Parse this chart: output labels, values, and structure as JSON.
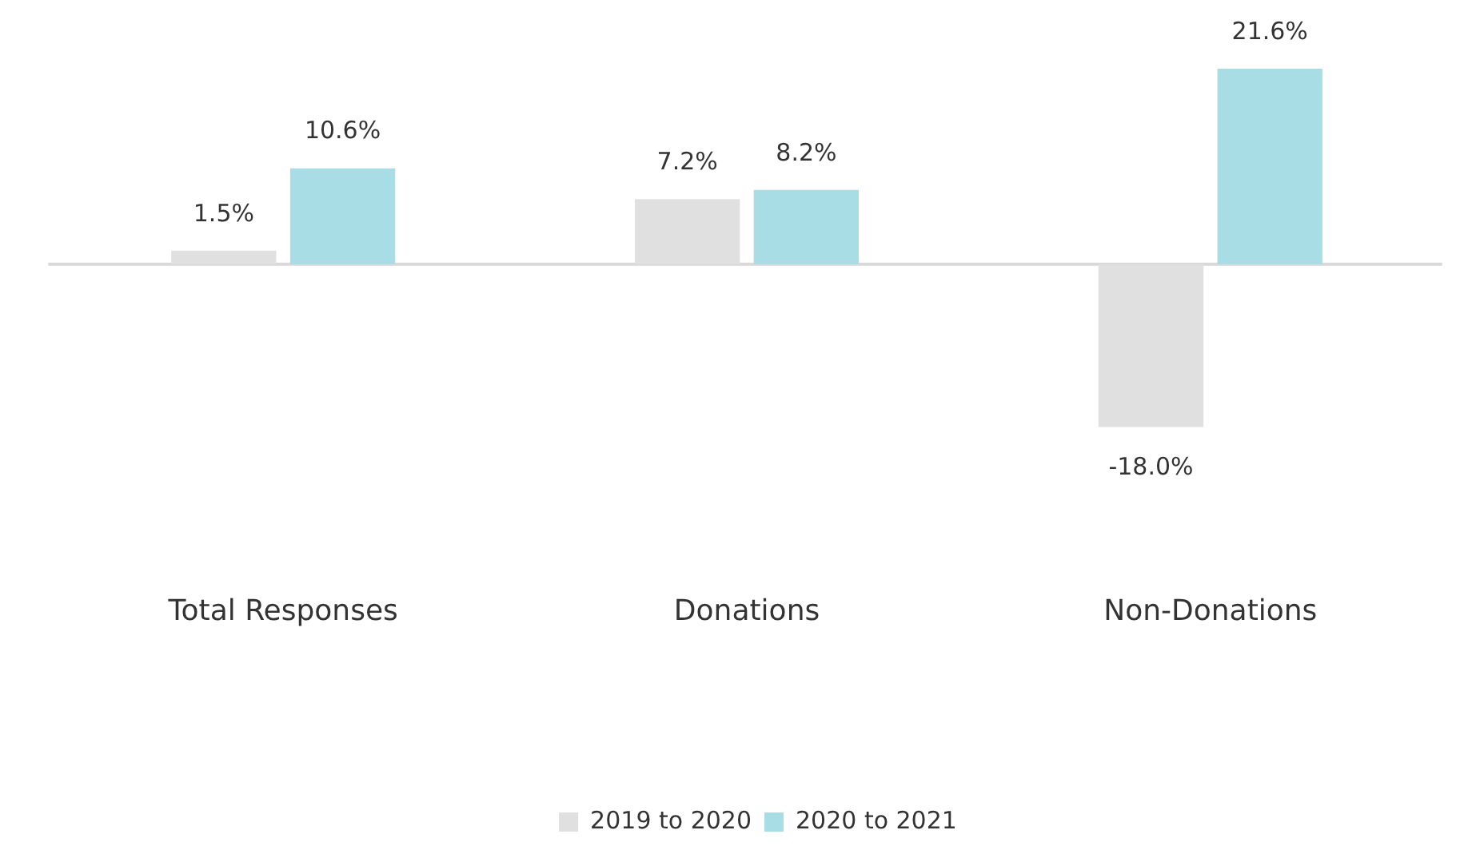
{
  "chart_data": {
    "type": "bar",
    "categories": [
      "Total Responses",
      "Donations",
      "Non-Donations"
    ],
    "series": [
      {
        "name": "2019 to 2020",
        "color": "#e0e0e0",
        "values": [
          1.5,
          7.2,
          -18.0
        ],
        "value_labels": [
          "1.5%",
          "7.2%",
          "-18.0%"
        ]
      },
      {
        "name": "2020 to 2021",
        "color": "#a8dde6",
        "values": [
          10.6,
          8.2,
          21.6
        ],
        "value_labels": [
          "10.6%",
          "8.2%",
          "21.6%"
        ]
      }
    ],
    "grid": false,
    "legend": "bottom"
  }
}
